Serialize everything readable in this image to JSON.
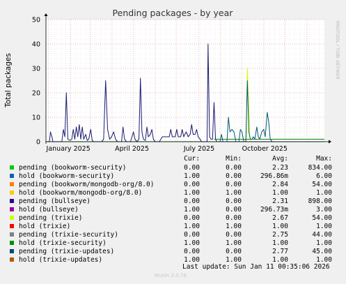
{
  "chart_data": {
    "type": "line",
    "title": "Pending packages - by year",
    "ylabel": "Total packages",
    "ylim": [
      0,
      50
    ],
    "yticks": [
      0,
      10,
      20,
      30,
      40,
      50
    ],
    "xtick_labels": [
      "January 2025",
      "April 2025",
      "July 2025",
      "October 2025"
    ],
    "grid": true,
    "side_label": "RRDTOOL / TOBI OETIKER",
    "x_range_weeks": [
      0,
      56
    ],
    "series": [
      {
        "name": "pending (trixie-security)",
        "color": "#00aa00",
        "points": [
          [
            0,
            0
          ],
          [
            56,
            0
          ]
        ]
      },
      {
        "name": "pending (trixie)",
        "color": "#ccff00",
        "points": [
          [
            40.0,
            0
          ],
          [
            40.3,
            2
          ],
          [
            40.5,
            30
          ],
          [
            40.7,
            18
          ],
          [
            41.0,
            2
          ],
          [
            41.3,
            0
          ]
        ]
      },
      {
        "name": "hold (trixie-security)",
        "color": "#008000",
        "points": [
          [
            33.8,
            1
          ],
          [
            56,
            1
          ]
        ]
      },
      {
        "name": "pending (bullseye)",
        "color": "#1c1a72",
        "points": [
          [
            0.0,
            0
          ],
          [
            0.7,
            0
          ],
          [
            0.9,
            4
          ],
          [
            1.2,
            2
          ],
          [
            1.4,
            0
          ],
          [
            3.2,
            0
          ],
          [
            3.5,
            5
          ],
          [
            3.8,
            2
          ],
          [
            4.1,
            20
          ],
          [
            4.4,
            1
          ],
          [
            4.8,
            0.5
          ],
          [
            5.2,
            1
          ],
          [
            5.5,
            5
          ],
          [
            5.8,
            1
          ],
          [
            6.1,
            6
          ],
          [
            6.4,
            2
          ],
          [
            6.7,
            7
          ],
          [
            7.0,
            1
          ],
          [
            7.3,
            6
          ],
          [
            7.6,
            1
          ],
          [
            8.0,
            3
          ],
          [
            8.3,
            0.5
          ],
          [
            8.6,
            1
          ],
          [
            9.0,
            5
          ],
          [
            9.3,
            0.5
          ],
          [
            9.6,
            0
          ],
          [
            11.2,
            0
          ],
          [
            11.6,
            1
          ],
          [
            12.0,
            25
          ],
          [
            12.4,
            5
          ],
          [
            12.8,
            1
          ],
          [
            13.2,
            2
          ],
          [
            13.6,
            4
          ],
          [
            14.0,
            1
          ],
          [
            14.4,
            0
          ],
          [
            15.2,
            0
          ],
          [
            15.5,
            6
          ],
          [
            15.8,
            1
          ],
          [
            16.2,
            0
          ],
          [
            17.0,
            0
          ],
          [
            17.3,
            2
          ],
          [
            17.6,
            4
          ],
          [
            17.9,
            1
          ],
          [
            18.3,
            0
          ],
          [
            18.7,
            1
          ],
          [
            19.0,
            26
          ],
          [
            19.3,
            4
          ],
          [
            19.6,
            1
          ],
          [
            20.0,
            0.5
          ],
          [
            20.3,
            6
          ],
          [
            20.6,
            2
          ],
          [
            21.0,
            3
          ],
          [
            21.3,
            5
          ],
          [
            21.6,
            1
          ],
          [
            22.0,
            0
          ],
          [
            22.8,
            0
          ],
          [
            23.1,
            1
          ],
          [
            23.4,
            2
          ],
          [
            24.0,
            2
          ],
          [
            24.8,
            2
          ],
          [
            25.1,
            5
          ],
          [
            25.4,
            2
          ],
          [
            26.0,
            2
          ],
          [
            26.3,
            5
          ],
          [
            26.6,
            2
          ],
          [
            27.1,
            2
          ],
          [
            27.4,
            5
          ],
          [
            27.7,
            2
          ],
          [
            28.2,
            4
          ],
          [
            28.6,
            2
          ],
          [
            29.0,
            3
          ],
          [
            29.3,
            7
          ],
          [
            29.6,
            3
          ],
          [
            30.0,
            3
          ],
          [
            30.3,
            5
          ],
          [
            30.6,
            2
          ],
          [
            31.0,
            1
          ],
          [
            31.3,
            0
          ],
          [
            32.4,
            0
          ],
          [
            32.6,
            40
          ],
          [
            32.9,
            2
          ],
          [
            33.2,
            1
          ],
          [
            33.5,
            1
          ],
          [
            33.8,
            16
          ],
          [
            34.1,
            1
          ],
          [
            34.4,
            0
          ],
          [
            56,
            0
          ]
        ]
      },
      {
        "name": "pending (trixie-updates)",
        "color": "#005a70",
        "points": [
          [
            34.4,
            0
          ],
          [
            35.0,
            0
          ],
          [
            35.3,
            3
          ],
          [
            35.6,
            0
          ],
          [
            36.4,
            0
          ],
          [
            36.7,
            10
          ],
          [
            37.0,
            4
          ],
          [
            37.4,
            5
          ],
          [
            37.8,
            4
          ],
          [
            38.2,
            0
          ],
          [
            38.8,
            0
          ],
          [
            39.1,
            5
          ],
          [
            39.4,
            4
          ],
          [
            39.8,
            0
          ],
          [
            40.2,
            0
          ],
          [
            40.5,
            25
          ],
          [
            40.8,
            4
          ],
          [
            41.1,
            1
          ],
          [
            41.4,
            1
          ],
          [
            41.7,
            2
          ],
          [
            42.0,
            1
          ],
          [
            42.4,
            6
          ],
          [
            42.7,
            2
          ],
          [
            43.0,
            1
          ],
          [
            43.4,
            4
          ],
          [
            43.8,
            5
          ],
          [
            44.1,
            2
          ],
          [
            44.5,
            12
          ],
          [
            44.8,
            8
          ],
          [
            45.1,
            1
          ],
          [
            45.5,
            0
          ],
          [
            56,
            0
          ]
        ]
      }
    ]
  },
  "legend": {
    "headers": {
      "cur": "Cur:",
      "min": "Min:",
      "avg": "Avg:",
      "max": "Max:"
    },
    "rows": [
      {
        "label": "pending (bookworm-security)",
        "color": "#00cc00",
        "cur": "0.00",
        "min": "0.00",
        "avg": "2.23",
        "max": "834.00"
      },
      {
        "label": "hold (bookworm-security)",
        "color": "#0066b3",
        "cur": "1.00",
        "min": "0.00",
        "avg": "296.86m",
        "max": "6.00"
      },
      {
        "label": "pending (bookworm/mongodb-org/8.0)",
        "color": "#ff8000",
        "cur": "0.00",
        "min": "0.00",
        "avg": "2.84",
        "max": "54.00"
      },
      {
        "label": "hold (bookworm/mongodb-org/8.0)",
        "color": "#ffcc00",
        "cur": "1.00",
        "min": "1.00",
        "avg": "1.00",
        "max": "1.00"
      },
      {
        "label": "pending (bullseye)",
        "color": "#330099",
        "cur": "0.00",
        "min": "0.00",
        "avg": "2.31",
        "max": "898.00"
      },
      {
        "label": "hold (bullseye)",
        "color": "#990099",
        "cur": "1.00",
        "min": "0.00",
        "avg": "296.73m",
        "max": "3.00"
      },
      {
        "label": "pending (trixie)",
        "color": "#ccff00",
        "cur": "0.00",
        "min": "0.00",
        "avg": "2.67",
        "max": "54.00"
      },
      {
        "label": "hold (trixie)",
        "color": "#ff0000",
        "cur": "1.00",
        "min": "1.00",
        "avg": "1.00",
        "max": "1.00"
      },
      {
        "label": "pending (trixie-security)",
        "color": "#808080",
        "cur": "0.00",
        "min": "0.00",
        "avg": "2.75",
        "max": "44.00"
      },
      {
        "label": "hold (trixie-security)",
        "color": "#008f00",
        "cur": "1.00",
        "min": "1.00",
        "avg": "1.00",
        "max": "1.00"
      },
      {
        "label": "pending (trixie-updates)",
        "color": "#00487d",
        "cur": "0.00",
        "min": "0.00",
        "avg": "2.77",
        "max": "45.00"
      },
      {
        "label": "hold (trixie-updates)",
        "color": "#b35a00",
        "cur": "1.00",
        "min": "1.00",
        "avg": "1.00",
        "max": "1.00"
      }
    ]
  },
  "footer": {
    "last_update": "Last update: Sun Jan 11 00:35:06 2026",
    "version": "Munin 2.0.76"
  }
}
